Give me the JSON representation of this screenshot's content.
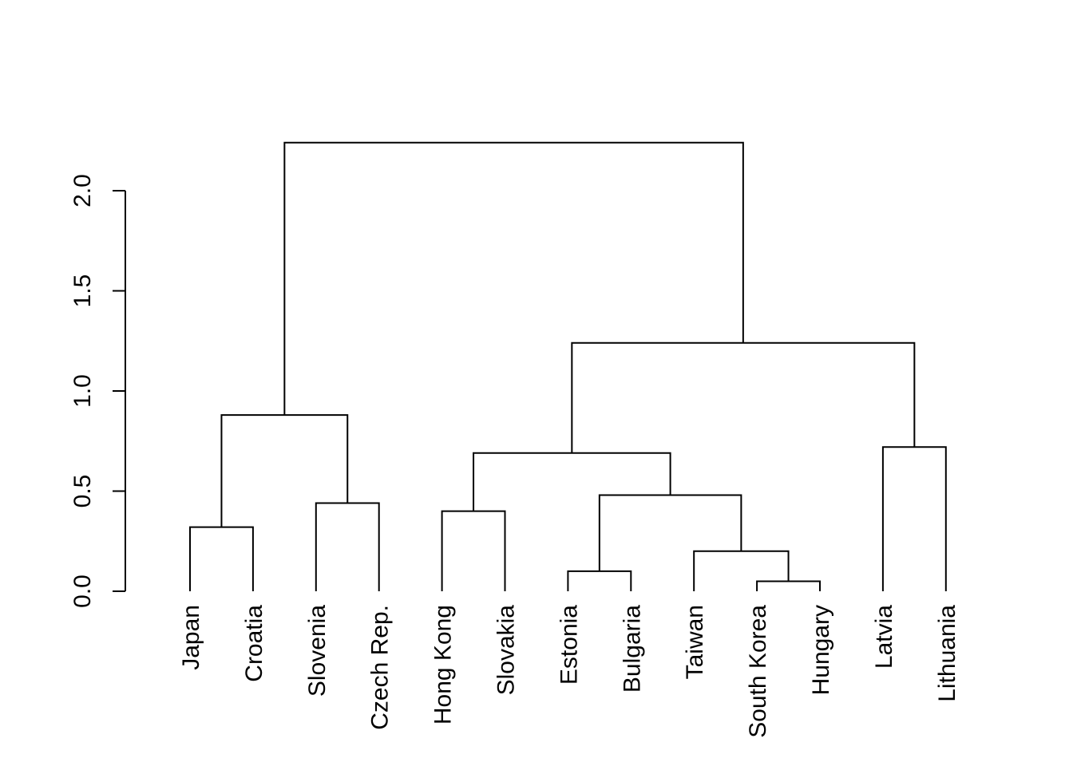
{
  "chart_data": {
    "type": "dendrogram",
    "title": "",
    "xlabel": "",
    "ylabel": "",
    "ylim": [
      0,
      2.0
    ],
    "yticks": [
      "0.0",
      "0.5",
      "1.0",
      "1.5",
      "2.0"
    ],
    "ytick_values": [
      0,
      0.5,
      1.0,
      1.5,
      2.0
    ],
    "leaves": [
      "Japan",
      "Croatia",
      "Slovenia",
      "Czech Rep.",
      "Hong Kong",
      "Slovakia",
      "Estonia",
      "Bulgaria",
      "Taiwan",
      "South Korea",
      "Hungary",
      "Latvia",
      "Lithuania"
    ],
    "merges": [
      {
        "id": "A",
        "children": [
          "Japan",
          "Croatia"
        ],
        "height": 0.32
      },
      {
        "id": "B",
        "children": [
          "Slovenia",
          "Czech Rep."
        ],
        "height": 0.44
      },
      {
        "id": "C",
        "children": [
          "A",
          "B"
        ],
        "height": 0.88
      },
      {
        "id": "D",
        "children": [
          "Hong Kong",
          "Slovakia"
        ],
        "height": 0.4
      },
      {
        "id": "E",
        "children": [
          "Estonia",
          "Bulgaria"
        ],
        "height": 0.1
      },
      {
        "id": "F",
        "children": [
          "South Korea",
          "Hungary"
        ],
        "height": 0.05
      },
      {
        "id": "G",
        "children": [
          "Taiwan",
          "F"
        ],
        "height": 0.2
      },
      {
        "id": "H",
        "children": [
          "E",
          "G"
        ],
        "height": 0.48
      },
      {
        "id": "I",
        "children": [
          "D",
          "H"
        ],
        "height": 0.69
      },
      {
        "id": "J",
        "children": [
          "Latvia",
          "Lithuania"
        ],
        "height": 0.72
      },
      {
        "id": "K",
        "children": [
          "I",
          "J"
        ],
        "height": 1.24
      },
      {
        "id": "L",
        "children": [
          "C",
          "K"
        ],
        "height": 2.24
      }
    ],
    "colors": {
      "line": "#000000",
      "background": "#ffffff"
    }
  }
}
